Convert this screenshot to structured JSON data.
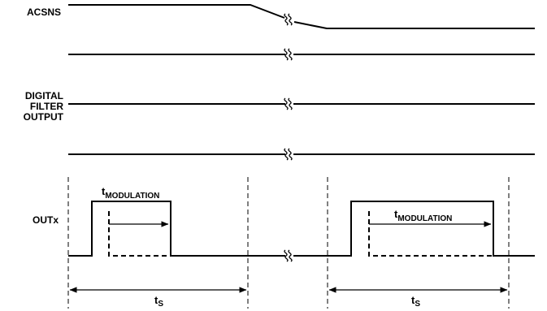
{
  "signals": {
    "acsns": "ACSNS",
    "digital_filter_output": [
      "DIGITAL",
      "FILTER",
      "OUTPUT"
    ],
    "outx": "OUTx"
  },
  "annotations": {
    "modulation_1": {
      "t": "t",
      "sub": "MODULATION"
    },
    "modulation_2": {
      "t": "t",
      "sub": "MODULATION"
    },
    "period_1": {
      "t": "t",
      "sub": "S"
    },
    "period_2": {
      "t": "t",
      "sub": "S"
    }
  },
  "colors": {
    "line": "#000000",
    "background": "#ffffff"
  }
}
